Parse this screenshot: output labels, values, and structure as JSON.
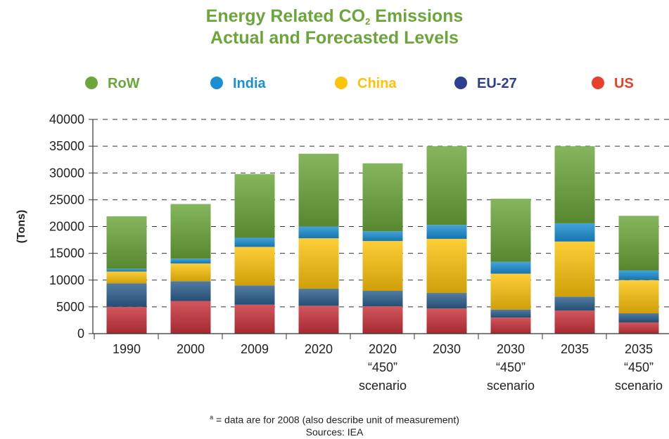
{
  "title": {
    "line1_pre": "Energy Related CO",
    "line1_sub": "2",
    "line1_post": " Emissions",
    "line2": "Actual and Forecasted Levels"
  },
  "footnote": {
    "marker": "a",
    "text": " = data are for 2008 (also describe unit of measurement)",
    "sources": "Sources: IEA"
  },
  "colors": {
    "RoW": "#6aa63a",
    "India": "#1a8fd2",
    "China": "#fcc30b",
    "EU-27": "#2d5f8d",
    "US": "#c8323a",
    "legend_EU-27": "#2e3f8f",
    "legend_US": "#e8402a"
  },
  "chart_data": {
    "type": "bar",
    "stacked": true,
    "ylabel": "(Tons)",
    "ylim": [
      0,
      40000
    ],
    "yticks": [
      0,
      5000,
      10000,
      15000,
      20000,
      25000,
      30000,
      35000,
      40000
    ],
    "grid": "dashed-horizontal",
    "legend_position": "top",
    "legend_order": [
      "RoW",
      "India",
      "China",
      "EU-27",
      "US"
    ],
    "categories": [
      [
        "1990"
      ],
      [
        "2000"
      ],
      [
        "2009"
      ],
      [
        "2020"
      ],
      [
        "2020",
        "“450”",
        "scenario"
      ],
      [
        "2030"
      ],
      [
        "2030",
        "“450”",
        "scenario"
      ],
      [
        "2035"
      ],
      [
        "2035",
        "“450”",
        "scenario"
      ]
    ],
    "series": [
      {
        "name": "US",
        "values": [
          5000,
          6100,
          5400,
          5200,
          5100,
          4700,
          3000,
          4300,
          2100
        ]
      },
      {
        "name": "EU-27",
        "values": [
          4400,
          3700,
          3600,
          3200,
          2900,
          2900,
          1500,
          2600,
          1700
        ]
      },
      {
        "name": "China",
        "values": [
          2200,
          3300,
          7200,
          9400,
          9300,
          10100,
          6700,
          10300,
          6200
        ]
      },
      {
        "name": "India",
        "values": [
          500,
          900,
          1700,
          2200,
          1800,
          2600,
          2200,
          3400,
          1800
        ]
      },
      {
        "name": "RoW",
        "values": [
          9800,
          10200,
          11900,
          13600,
          12700,
          14700,
          11800,
          14400,
          10200
        ]
      }
    ]
  }
}
